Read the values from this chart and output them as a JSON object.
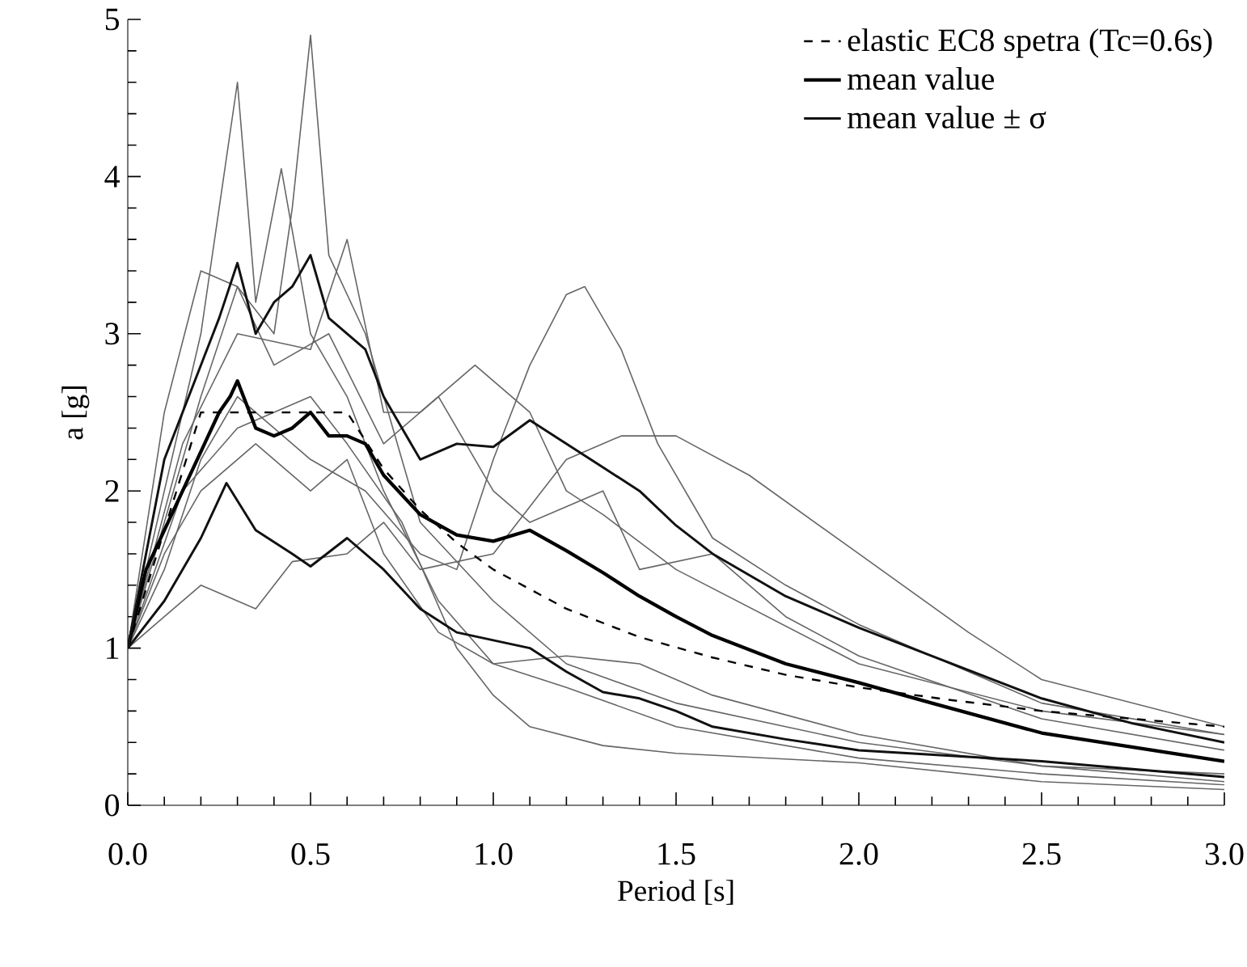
{
  "chart_data": {
    "type": "line",
    "xlabel": "Period [s]",
    "ylabel": "a [g]",
    "xlim": [
      0,
      3
    ],
    "ylim": [
      0,
      5
    ],
    "xticks": [
      {
        "value": 0,
        "label": "0.0"
      },
      {
        "value": 0.5,
        "label": "0.5"
      },
      {
        "value": 1,
        "label": "1.0"
      },
      {
        "value": 1.5,
        "label": "1.5"
      },
      {
        "value": 2,
        "label": "2.0"
      },
      {
        "value": 2.5,
        "label": "2.5"
      },
      {
        "value": 3,
        "label": "3.0"
      }
    ],
    "yticks": [
      0,
      1,
      2,
      3,
      4,
      5
    ],
    "grid": false,
    "legend": "top right",
    "marker": "none",
    "series": [
      {
        "color": "#666666",
        "line_style": "solid",
        "x": [
          0,
          0.1,
          0.2,
          0.3,
          0.4,
          0.45,
          0.5,
          0.55,
          0.65,
          0.8,
          1.0,
          1.2,
          1.5,
          2.0,
          2.5,
          3.0
        ],
        "values": [
          1,
          1.8,
          2.6,
          3.3,
          3.0,
          3.8,
          4.9,
          3.5,
          3.0,
          1.8,
          1.3,
          0.9,
          0.65,
          0.4,
          0.25,
          0.2
        ]
      },
      {
        "color": "#666666",
        "line_style": "solid",
        "x": [
          0,
          0.1,
          0.2,
          0.3,
          0.35,
          0.42,
          0.5,
          0.6,
          0.7,
          0.85,
          1.0,
          1.2,
          1.5,
          2.0,
          2.5,
          3.0
        ],
        "values": [
          1,
          2.0,
          3.0,
          4.6,
          3.2,
          4.05,
          3.0,
          2.6,
          2.0,
          1.3,
          0.9,
          0.75,
          0.5,
          0.3,
          0.2,
          0.13
        ]
      },
      {
        "color": "#666666",
        "line_style": "solid",
        "x": [
          0,
          0.1,
          0.2,
          0.3,
          0.5,
          0.65,
          0.8,
          0.9,
          1.0,
          1.1,
          1.2,
          1.25,
          1.35,
          1.45,
          1.6,
          1.8,
          2.0,
          2.5,
          3.0
        ],
        "values": [
          1,
          1.5,
          2.2,
          2.6,
          2.2,
          2.0,
          1.6,
          1.5,
          2.2,
          2.8,
          3.25,
          3.3,
          2.9,
          2.3,
          1.7,
          1.4,
          1.15,
          0.65,
          0.45
        ]
      },
      {
        "color": "#666666",
        "line_style": "solid",
        "x": [
          0,
          0.15,
          0.3,
          0.5,
          0.6,
          0.7,
          0.8,
          0.95,
          1.1,
          1.2,
          1.3,
          1.5,
          2.0,
          2.5,
          3.0
        ],
        "values": [
          1,
          2.3,
          3.0,
          2.9,
          3.6,
          2.5,
          2.5,
          2.8,
          2.5,
          2.0,
          1.85,
          1.5,
          0.9,
          0.6,
          0.45
        ]
      },
      {
        "color": "#666666",
        "line_style": "solid",
        "x": [
          0,
          0.1,
          0.2,
          0.3,
          0.35,
          0.45,
          0.6,
          0.7,
          0.8,
          1.0,
          1.2,
          1.35,
          1.5,
          1.7,
          2.0,
          2.3,
          2.5,
          3.0
        ],
        "values": [
          1,
          1.2,
          1.4,
          1.3,
          1.25,
          1.55,
          1.6,
          1.8,
          1.5,
          1.6,
          2.2,
          2.35,
          2.35,
          2.1,
          1.6,
          1.1,
          0.8,
          0.5
        ]
      },
      {
        "color": "#666666",
        "line_style": "solid",
        "x": [
          0,
          0.15,
          0.3,
          0.5,
          0.6,
          0.75,
          0.9,
          1.0,
          1.1,
          1.3,
          1.5,
          2.0,
          2.5,
          3.0
        ],
        "values": [
          1,
          2.0,
          2.4,
          2.6,
          2.3,
          1.8,
          1.0,
          0.7,
          0.5,
          0.38,
          0.33,
          0.27,
          0.15,
          0.1
        ]
      },
      {
        "color": "#666666",
        "line_style": "solid",
        "x": [
          0,
          0.1,
          0.2,
          0.3,
          0.4,
          0.55,
          0.7,
          0.85,
          1.0,
          1.1,
          1.3,
          1.4,
          1.6,
          1.8,
          2.0,
          2.5,
          3.0
        ],
        "values": [
          1,
          2.5,
          3.4,
          3.3,
          2.8,
          3.0,
          2.3,
          2.6,
          2.0,
          1.8,
          2.0,
          1.5,
          1.6,
          1.2,
          0.95,
          0.55,
          0.35
        ]
      },
      {
        "color": "#666666",
        "line_style": "solid",
        "x": [
          0,
          0.1,
          0.2,
          0.35,
          0.5,
          0.6,
          0.7,
          0.85,
          1.0,
          1.2,
          1.4,
          1.6,
          2.0,
          2.5,
          3.0
        ],
        "values": [
          1,
          1.6,
          2.0,
          2.3,
          2.0,
          2.2,
          1.6,
          1.1,
          0.9,
          0.95,
          0.9,
          0.7,
          0.45,
          0.25,
          0.15
        ]
      },
      {
        "name": "elastic EC8 spetra (Tc=0.6s)",
        "color": "#000000",
        "line_style": "dashed",
        "x": [
          0,
          0.2,
          0.6,
          0.7,
          0.8,
          0.9,
          1.0,
          1.2,
          1.4,
          1.6,
          1.8,
          2.0,
          2.25,
          2.5,
          2.75,
          3.0
        ],
        "values": [
          1,
          2.5,
          2.5,
          2.14,
          1.88,
          1.67,
          1.5,
          1.25,
          1.07,
          0.94,
          0.83,
          0.75,
          0.67,
          0.6,
          0.55,
          0.5
        ]
      },
      {
        "name": "mean value",
        "color": "#000000",
        "line_style": "solid",
        "x": [
          0,
          0.05,
          0.1,
          0.15,
          0.2,
          0.25,
          0.28,
          0.3,
          0.35,
          0.4,
          0.45,
          0.5,
          0.55,
          0.6,
          0.65,
          0.7,
          0.8,
          0.9,
          1.0,
          1.1,
          1.2,
          1.3,
          1.4,
          1.5,
          1.6,
          1.8,
          2.0,
          2.2,
          2.5,
          2.75,
          3.0
        ],
        "values": [
          1,
          1.5,
          1.75,
          2.0,
          2.25,
          2.5,
          2.6,
          2.7,
          2.4,
          2.35,
          2.4,
          2.5,
          2.35,
          2.35,
          2.3,
          2.1,
          1.85,
          1.72,
          1.68,
          1.75,
          1.62,
          1.48,
          1.33,
          1.2,
          1.08,
          0.9,
          0.78,
          0.65,
          0.46,
          0.37,
          0.28
        ]
      },
      {
        "name": "mean value ± σ",
        "color": "#111111",
        "line_style": "solid",
        "x": [
          0,
          0.1,
          0.2,
          0.25,
          0.3,
          0.35,
          0.4,
          0.45,
          0.5,
          0.55,
          0.65,
          0.7,
          0.8,
          0.9,
          1.0,
          1.1,
          1.2,
          1.3,
          1.4,
          1.5,
          1.6,
          1.8,
          2.0,
          2.2,
          2.5,
          2.75,
          3.0
        ],
        "values": [
          1,
          2.2,
          2.8,
          3.1,
          3.45,
          3.0,
          3.2,
          3.3,
          3.5,
          3.1,
          2.9,
          2.6,
          2.2,
          2.3,
          2.28,
          2.45,
          2.3,
          2.15,
          2.0,
          1.78,
          1.6,
          1.33,
          1.13,
          0.95,
          0.68,
          0.52,
          0.4
        ]
      },
      {
        "color": "#111111",
        "line_style": "solid",
        "x": [
          0,
          0.1,
          0.2,
          0.27,
          0.35,
          0.45,
          0.5,
          0.6,
          0.7,
          0.8,
          0.9,
          1.0,
          1.1,
          1.2,
          1.3,
          1.4,
          1.5,
          1.6,
          1.8,
          2.0,
          2.5,
          3.0
        ],
        "values": [
          1,
          1.3,
          1.7,
          2.05,
          1.75,
          1.6,
          1.52,
          1.7,
          1.5,
          1.25,
          1.1,
          1.05,
          1.0,
          0.85,
          0.72,
          0.68,
          0.6,
          0.5,
          0.42,
          0.35,
          0.28,
          0.18
        ]
      }
    ]
  }
}
